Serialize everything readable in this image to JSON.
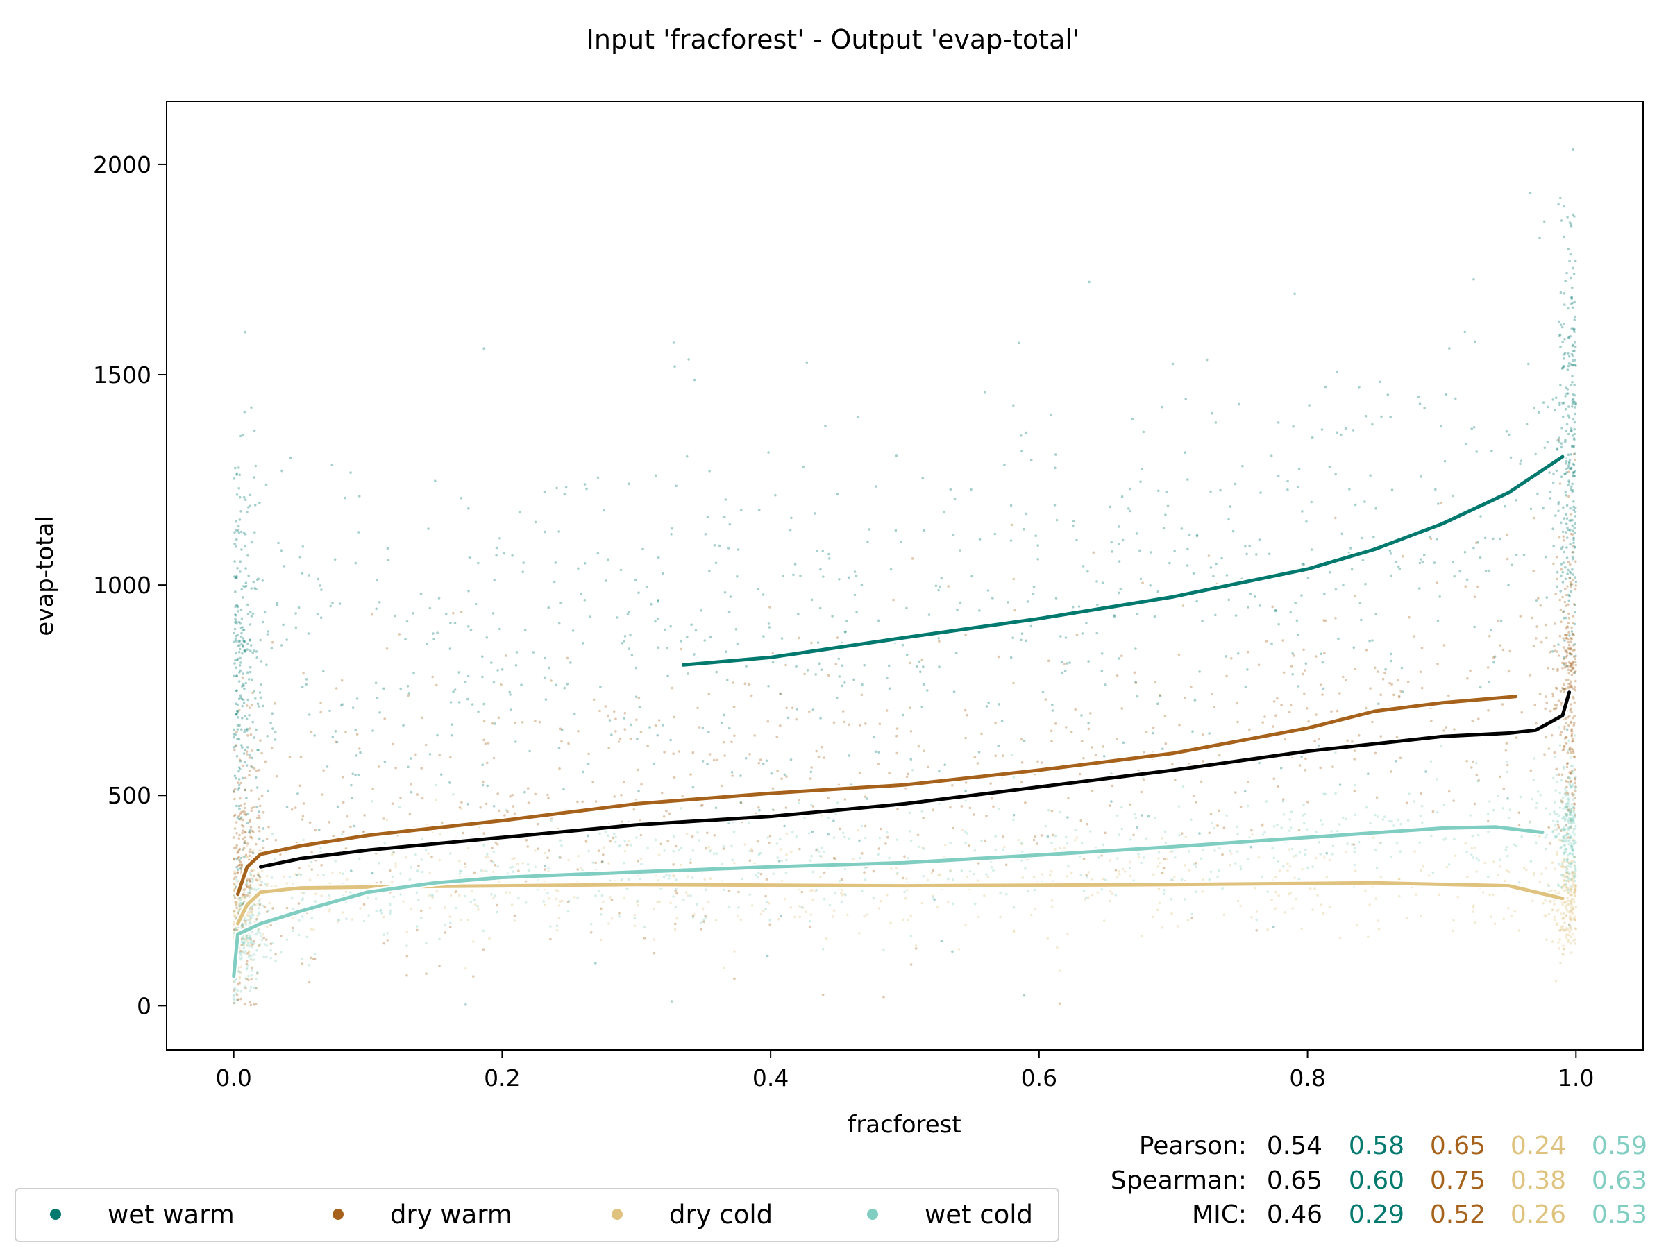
{
  "chart_data": {
    "type": "scatter",
    "title": "Input 'fracforest' - Output 'evap-total'",
    "xlabel": "fracforest",
    "ylabel": "evap-total",
    "xlim": [
      -0.05,
      1.05
    ],
    "ylim": [
      -105,
      2150
    ],
    "x_ticks": [
      0.0,
      0.2,
      0.4,
      0.6,
      0.8,
      1.0
    ],
    "x_tick_labels": [
      "0.0",
      "0.2",
      "0.4",
      "0.6",
      "0.8",
      "1.0"
    ],
    "y_ticks": [
      0,
      500,
      1000,
      1500,
      2000
    ],
    "y_tick_labels": [
      "0",
      "500",
      "1000",
      "1500",
      "2000"
    ],
    "grid": false,
    "legend_position": "bottom-left, below plot",
    "series": [
      {
        "name": "wet warm",
        "color": "#01796f",
        "trend": [
          [
            0.335,
            810
          ],
          [
            0.4,
            828
          ],
          [
            0.5,
            875
          ],
          [
            0.6,
            920
          ],
          [
            0.7,
            972
          ],
          [
            0.8,
            1038
          ],
          [
            0.85,
            1085
          ],
          [
            0.9,
            1145
          ],
          [
            0.95,
            1220
          ],
          [
            0.99,
            1305
          ]
        ]
      },
      {
        "name": "dry warm",
        "color": "#a6611a",
        "trend": [
          [
            0.003,
            265
          ],
          [
            0.01,
            330
          ],
          [
            0.02,
            360
          ],
          [
            0.05,
            380
          ],
          [
            0.1,
            405
          ],
          [
            0.2,
            440
          ],
          [
            0.3,
            480
          ],
          [
            0.4,
            505
          ],
          [
            0.5,
            525
          ],
          [
            0.6,
            560
          ],
          [
            0.7,
            600
          ],
          [
            0.8,
            660
          ],
          [
            0.85,
            700
          ],
          [
            0.9,
            720
          ],
          [
            0.955,
            735
          ]
        ]
      },
      {
        "name": "dry cold",
        "color": "#dfc27d",
        "trend": [
          [
            0.003,
            195
          ],
          [
            0.01,
            240
          ],
          [
            0.02,
            270
          ],
          [
            0.05,
            280
          ],
          [
            0.1,
            282
          ],
          [
            0.2,
            285
          ],
          [
            0.3,
            288
          ],
          [
            0.5,
            285
          ],
          [
            0.7,
            288
          ],
          [
            0.85,
            292
          ],
          [
            0.95,
            285
          ],
          [
            0.99,
            255
          ]
        ]
      },
      {
        "name": "wet cold",
        "color": "#80cdc1",
        "trend": [
          [
            0.0,
            70
          ],
          [
            0.003,
            170
          ],
          [
            0.02,
            195
          ],
          [
            0.05,
            225
          ],
          [
            0.1,
            270
          ],
          [
            0.15,
            292
          ],
          [
            0.2,
            305
          ],
          [
            0.3,
            318
          ],
          [
            0.4,
            330
          ],
          [
            0.5,
            340
          ],
          [
            0.6,
            358
          ],
          [
            0.7,
            378
          ],
          [
            0.8,
            400
          ],
          [
            0.9,
            422
          ],
          [
            0.94,
            425
          ],
          [
            0.975,
            412
          ]
        ]
      }
    ],
    "overall_trend": {
      "color": "#000000",
      "points": [
        [
          0.02,
          330
        ],
        [
          0.05,
          350
        ],
        [
          0.1,
          370
        ],
        [
          0.2,
          400
        ],
        [
          0.3,
          430
        ],
        [
          0.4,
          450
        ],
        [
          0.5,
          480
        ],
        [
          0.6,
          520
        ],
        [
          0.7,
          560
        ],
        [
          0.8,
          605
        ],
        [
          0.9,
          640
        ],
        [
          0.95,
          648
        ],
        [
          0.97,
          655
        ],
        [
          0.99,
          690
        ],
        [
          0.995,
          745
        ]
      ]
    },
    "stats": {
      "row_labels": [
        "Pearson:",
        "Spearman:",
        "MIC:"
      ],
      "values": [
        [
          "0.54",
          "0.58",
          "0.65",
          "0.24",
          "0.59"
        ],
        [
          "0.65",
          "0.60",
          "0.75",
          "0.38",
          "0.63"
        ],
        [
          "0.46",
          "0.29",
          "0.52",
          "0.26",
          "0.53"
        ]
      ],
      "value_colors": [
        "#000000",
        "#01796f",
        "#a6611a",
        "#dfc27d",
        "#80cdc1"
      ]
    }
  }
}
